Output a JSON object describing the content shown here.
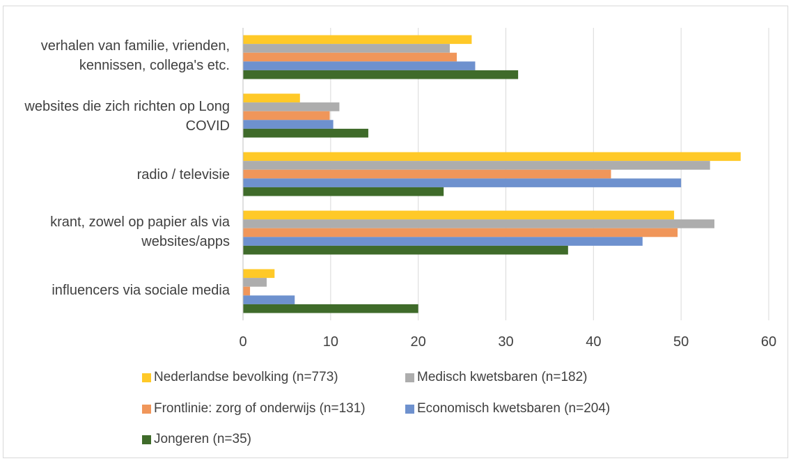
{
  "chart_data": {
    "type": "bar",
    "orientation": "horizontal",
    "title": "",
    "xlabel": "",
    "ylabel": "",
    "xlim": [
      0,
      60
    ],
    "ticks": [
      "0",
      "10",
      "20",
      "30",
      "40",
      "50",
      "60"
    ],
    "grid": "vertical",
    "legend_position": "bottom",
    "categories": [
      "verhalen van familie, vrienden, kennissen, collega's etc.",
      "websites die zich richten op Long COVID",
      "radio / televisie",
      "krant, zowel op papier als via websites/apps",
      "influencers via sociale media"
    ],
    "series": [
      {
        "name": "Nederlandse bevolking (n=773)",
        "color": "#FFC928",
        "values": [
          26.1,
          6.5,
          56.8,
          49.2,
          3.6
        ]
      },
      {
        "name": "Medisch kwetsbaren (n=182)",
        "color": "#ADADAD",
        "values": [
          23.6,
          11.0,
          53.3,
          53.8,
          2.7
        ]
      },
      {
        "name": "Frontlinie: zorg of onderwijs (n=131)",
        "color": "#F0965A",
        "values": [
          24.4,
          9.9,
          42.0,
          49.6,
          0.8
        ]
      },
      {
        "name": "Economisch kwetsbaren (n=204)",
        "color": "#6E91CE",
        "values": [
          26.5,
          10.3,
          50.0,
          45.6,
          5.9
        ]
      },
      {
        "name": "Jongeren (n=35)",
        "color": "#3F6B2A",
        "values": [
          31.4,
          14.3,
          22.9,
          37.1,
          20.0
        ]
      }
    ]
  }
}
